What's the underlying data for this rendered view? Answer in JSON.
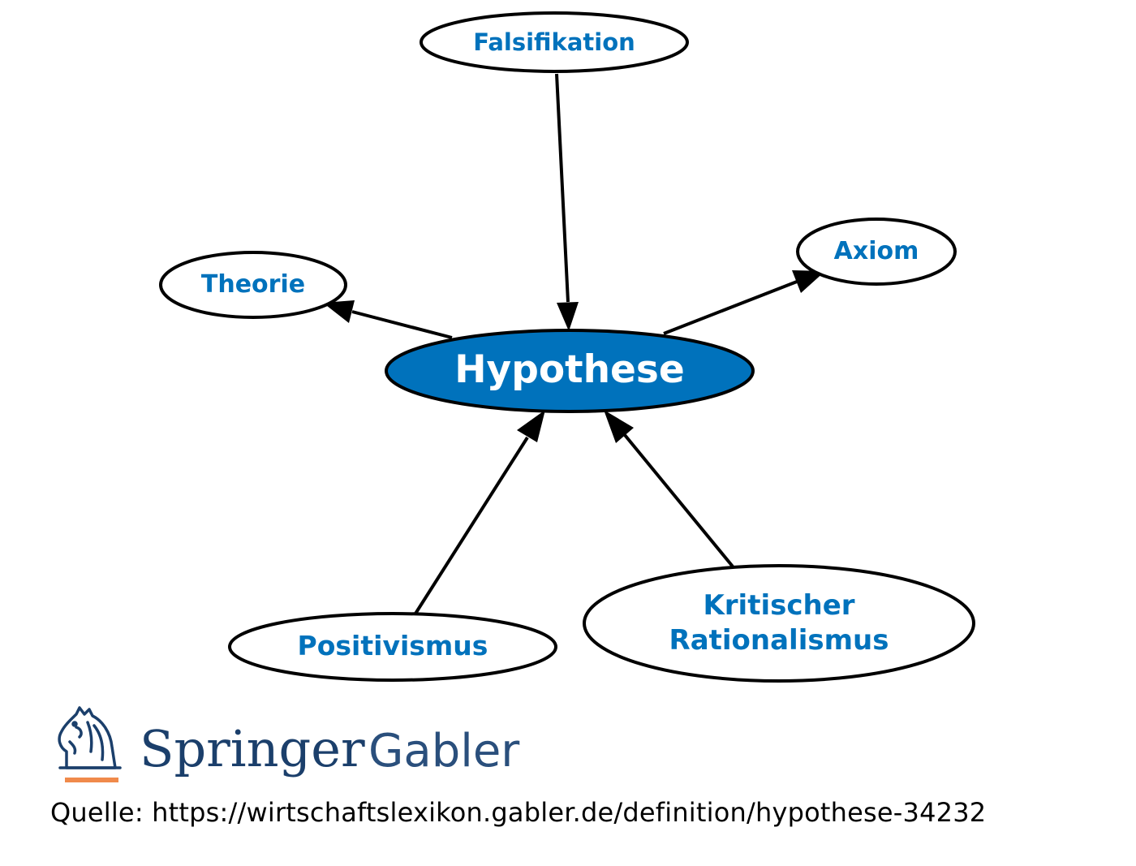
{
  "diagram": {
    "center": {
      "label": "Hypothese"
    },
    "nodes": {
      "falsifikation": "Falsifikation",
      "theorie": "Theorie",
      "axiom": "Axiom",
      "positivismus": "Positivismus",
      "kritischer_line1": "Kritischer",
      "kritischer_line2": "Rationalismus"
    },
    "edges": [
      {
        "from": "Falsifikation",
        "to": "Hypothese"
      },
      {
        "from": "Hypothese",
        "to": "Theorie"
      },
      {
        "from": "Hypothese",
        "to": "Axiom"
      },
      {
        "from": "Positivismus",
        "to": "Hypothese"
      },
      {
        "from": "Kritischer Rationalismus",
        "to": "Hypothese"
      }
    ],
    "colors": {
      "accent": "#0072BC",
      "node_text": "#0072BC",
      "center_text": "#ffffff",
      "stroke": "#000000"
    }
  },
  "logo": {
    "brand": "Springer",
    "sub": "Gabler",
    "icon": "knight-horse-icon",
    "colors": {
      "brand": "#1b3f6b",
      "underline": "#f08a4b"
    }
  },
  "source": {
    "text": "Quelle: https://wirtschaftslexikon.gabler.de/definition/hypothese-34232"
  }
}
